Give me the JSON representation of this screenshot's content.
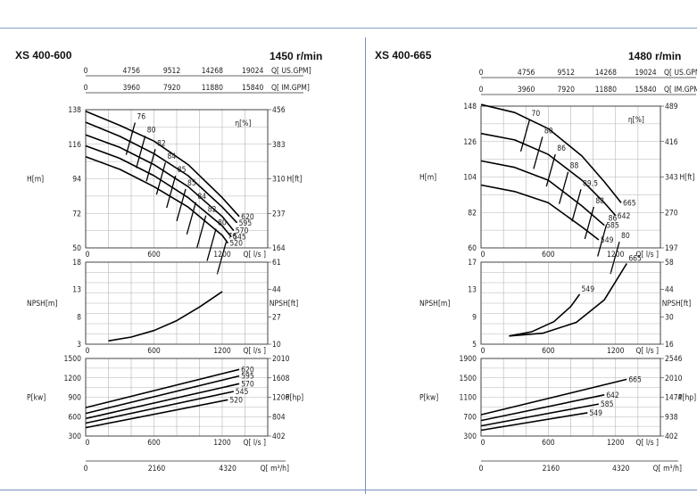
{
  "chart_data": [
    {
      "type": "line",
      "model": "XS 400-600",
      "speed": "1450 r/min",
      "top_axes": [
        {
          "ticks": [
            "0",
            "4756",
            "9512",
            "14268",
            "19024"
          ],
          "unit": "Q[ US.GPM]"
        },
        {
          "ticks": [
            "0",
            "3960",
            "7920",
            "11880",
            "15840"
          ],
          "unit": "Q[ IM.GPM]"
        }
      ],
      "bottom_axis": {
        "ticks": [
          "0",
          "2160",
          "4320"
        ],
        "unit": "Q[ m³/h]"
      },
      "panels": {
        "head": {
          "ylabel": "H[m]",
          "ylabel_right": "H[ft]",
          "unit_label": "η[%]",
          "ylim": [
            50,
            138
          ],
          "yticks": [
            50,
            72,
            94,
            116,
            138
          ],
          "right_ticks": [
            {
              "v": 50,
              "t": "164"
            },
            {
              "v": 72,
              "t": "237"
            },
            {
              "v": 94,
              "t": "310"
            },
            {
              "v": 116,
              "t": "383"
            },
            {
              "v": 138,
              "t": "456"
            }
          ],
          "xticks": [
            "0",
            "600",
            "1200"
          ],
          "xunit": "Q[ l/s ]",
          "xlim": [
            0,
            1600
          ],
          "curves": [
            {
              "name": "620",
              "x": [
                0,
                300,
                600,
                900,
                1200,
                1350
              ],
              "y": [
                137,
                128,
                118,
                103,
                82,
                70
              ]
            },
            {
              "name": "595",
              "x": [
                0,
                300,
                600,
                900,
                1200,
                1330
              ],
              "y": [
                130,
                121,
                110,
                96,
                76,
                66
              ]
            },
            {
              "name": "570",
              "x": [
                0,
                300,
                600,
                900,
                1200,
                1300
              ],
              "y": [
                122,
                114,
                103,
                89,
                70,
                61
              ]
            },
            {
              "name": "545",
              "x": [
                0,
                300,
                600,
                900,
                1200,
                1280
              ],
              "y": [
                115,
                107,
                96,
                82,
                64,
                57
              ]
            },
            {
              "name": "520",
              "x": [
                0,
                300,
                600,
                900,
                1200,
                1250
              ],
              "y": [
                108,
                100,
                89,
                76,
                58,
                53
              ]
            }
          ],
          "efficiency_labels": [
            "76",
            "80",
            "82",
            "84",
            "85",
            "85",
            "84",
            "82",
            "80",
            "76"
          ]
        },
        "npsh": {
          "ylabel": "NPSH[m]",
          "ylabel_right": "NPSH[ft]",
          "ylim": [
            3,
            18
          ],
          "yticks": [
            3,
            8,
            13,
            18
          ],
          "right_ticks": [
            {
              "v": 3,
              "t": "10"
            },
            {
              "v": 8,
              "t": "27"
            },
            {
              "v": 13,
              "t": "44"
            },
            {
              "v": 18,
              "t": "61"
            }
          ],
          "xticks": [
            "0",
            "600",
            "1200"
          ],
          "xunit": "Q[ l/s ]",
          "xlim": [
            0,
            1600
          ],
          "curves": [
            {
              "name": "",
              "x": [
                200,
                400,
                600,
                800,
                1000,
                1200
              ],
              "y": [
                3.6,
                4.3,
                5.5,
                7.3,
                9.8,
                12.6
              ]
            }
          ]
        },
        "power": {
          "ylabel": "P[kw]",
          "ylabel_right": "P[hp]",
          "ylim": [
            300,
            1500
          ],
          "yticks": [
            300,
            600,
            900,
            1200,
            1500
          ],
          "right_ticks": [
            {
              "v": 300,
              "t": "402"
            },
            {
              "v": 600,
              "t": "804"
            },
            {
              "v": 900,
              "t": "1206"
            },
            {
              "v": 1200,
              "t": "1608"
            },
            {
              "v": 1500,
              "t": "2010"
            }
          ],
          "xticks": [
            "0",
            "600",
            "1200"
          ],
          "xunit": "Q[ l/s ]",
          "xlim": [
            0,
            1600
          ],
          "curves": [
            {
              "name": "620",
              "x": [
                0,
                1350
              ],
              "y": [
                740,
                1330
              ]
            },
            {
              "name": "595",
              "x": [
                0,
                1350
              ],
              "y": [
                650,
                1230
              ]
            },
            {
              "name": "570",
              "x": [
                0,
                1350
              ],
              "y": [
                570,
                1110
              ]
            },
            {
              "name": "545",
              "x": [
                0,
                1300
              ],
              "y": [
                500,
                990
              ]
            },
            {
              "name": "520",
              "x": [
                0,
                1250
              ],
              "y": [
                430,
                860
              ]
            }
          ]
        }
      }
    },
    {
      "type": "line",
      "model": "XS 400-665",
      "speed": "1480 r/min",
      "top_axes": [
        {
          "ticks": [
            "0",
            "4756",
            "9512",
            "14268",
            "19024"
          ],
          "unit": "Q[ US.GPM]"
        },
        {
          "ticks": [
            "0",
            "3960",
            "7920",
            "11880",
            "15840"
          ],
          "unit": "Q[ IM.GPM]"
        }
      ],
      "bottom_axis": {
        "ticks": [
          "0",
          "2160",
          "4320"
        ],
        "unit": "Q[ m³/h]"
      },
      "panels": {
        "head": {
          "ylabel": "H[m]",
          "ylabel_right": "H[ft]",
          "unit_label": "η[%]",
          "ylim": [
            60,
            148
          ],
          "yticks": [
            60,
            82,
            104,
            126,
            148
          ],
          "right_ticks": [
            {
              "v": 60,
              "t": "197"
            },
            {
              "v": 82,
              "t": "270"
            },
            {
              "v": 104,
              "t": "343"
            },
            {
              "v": 126,
              "t": "416"
            },
            {
              "v": 148,
              "t": "489"
            }
          ],
          "xticks": [
            "0",
            "600",
            "1200"
          ],
          "xunit": "Q[ l/s ]",
          "xlim": [
            0,
            1600
          ],
          "curves": [
            {
              "name": "665",
              "x": [
                0,
                300,
                600,
                900,
                1100,
                1250
              ],
              "y": [
                149,
                144,
                134,
                117,
                101,
                88
              ]
            },
            {
              "name": "642",
              "x": [
                0,
                300,
                600,
                900,
                1100,
                1200
              ],
              "y": [
                131,
                127,
                118,
                102,
                88,
                80
              ]
            },
            {
              "name": "585",
              "x": [
                0,
                300,
                600,
                900,
                1100
              ],
              "y": [
                114,
                110,
                102,
                86,
                74
              ]
            },
            {
              "name": "549",
              "x": [
                0,
                300,
                600,
                900,
                1050
              ],
              "y": [
                99,
                95,
                88,
                73,
                65
              ]
            }
          ],
          "efficiency_labels": [
            "70",
            "80",
            "86",
            "88",
            "89.5",
            "88",
            "86",
            "80"
          ]
        },
        "npsh": {
          "ylabel": "NPSH[m]",
          "ylabel_right": "NPSH[ft]",
          "ylim": [
            5,
            17
          ],
          "yticks": [
            5,
            9,
            13,
            17
          ],
          "right_ticks": [
            {
              "v": 5,
              "t": "16"
            },
            {
              "v": 9,
              "t": "30"
            },
            {
              "v": 13,
              "t": "44"
            },
            {
              "v": 17,
              "t": "58"
            }
          ],
          "xticks": [
            "0",
            "600",
            "1200"
          ],
          "xunit": "Q[ l/s ]",
          "xlim": [
            0,
            1600
          ],
          "curves": [
            {
              "name": "549",
              "x": [
                250,
                450,
                650,
                800,
                880
              ],
              "y": [
                6.2,
                6.8,
                8.3,
                10.5,
                12.3
              ]
            },
            {
              "name": "665",
              "x": [
                250,
                550,
                850,
                1100,
                1300
              ],
              "y": [
                6.2,
                6.6,
                8.2,
                11.5,
                16.8
              ]
            }
          ]
        },
        "power": {
          "ylabel": "P[kw]",
          "ylabel_right": "P[hp]",
          "ylim": [
            300,
            1900
          ],
          "yticks": [
            300,
            700,
            1100,
            1500,
            1900
          ],
          "right_ticks": [
            {
              "v": 300,
              "t": "402"
            },
            {
              "v": 700,
              "t": "938"
            },
            {
              "v": 1100,
              "t": "1474"
            },
            {
              "v": 1500,
              "t": "2010"
            },
            {
              "v": 1900,
              "t": "2546"
            }
          ],
          "xticks": [
            "0",
            "600",
            "1200"
          ],
          "xunit": "Q[ l/s ]",
          "xlim": [
            0,
            1600
          ],
          "curves": [
            {
              "name": "665",
              "x": [
                0,
                1300
              ],
              "y": [
                740,
                1470
              ]
            },
            {
              "name": "642",
              "x": [
                0,
                1100
              ],
              "y": [
                620,
                1150
              ]
            },
            {
              "name": "585",
              "x": [
                0,
                1050
              ],
              "y": [
                510,
                960
              ]
            },
            {
              "name": "549",
              "x": [
                0,
                950
              ],
              "y": [
                420,
                780
              ]
            }
          ]
        }
      }
    }
  ]
}
